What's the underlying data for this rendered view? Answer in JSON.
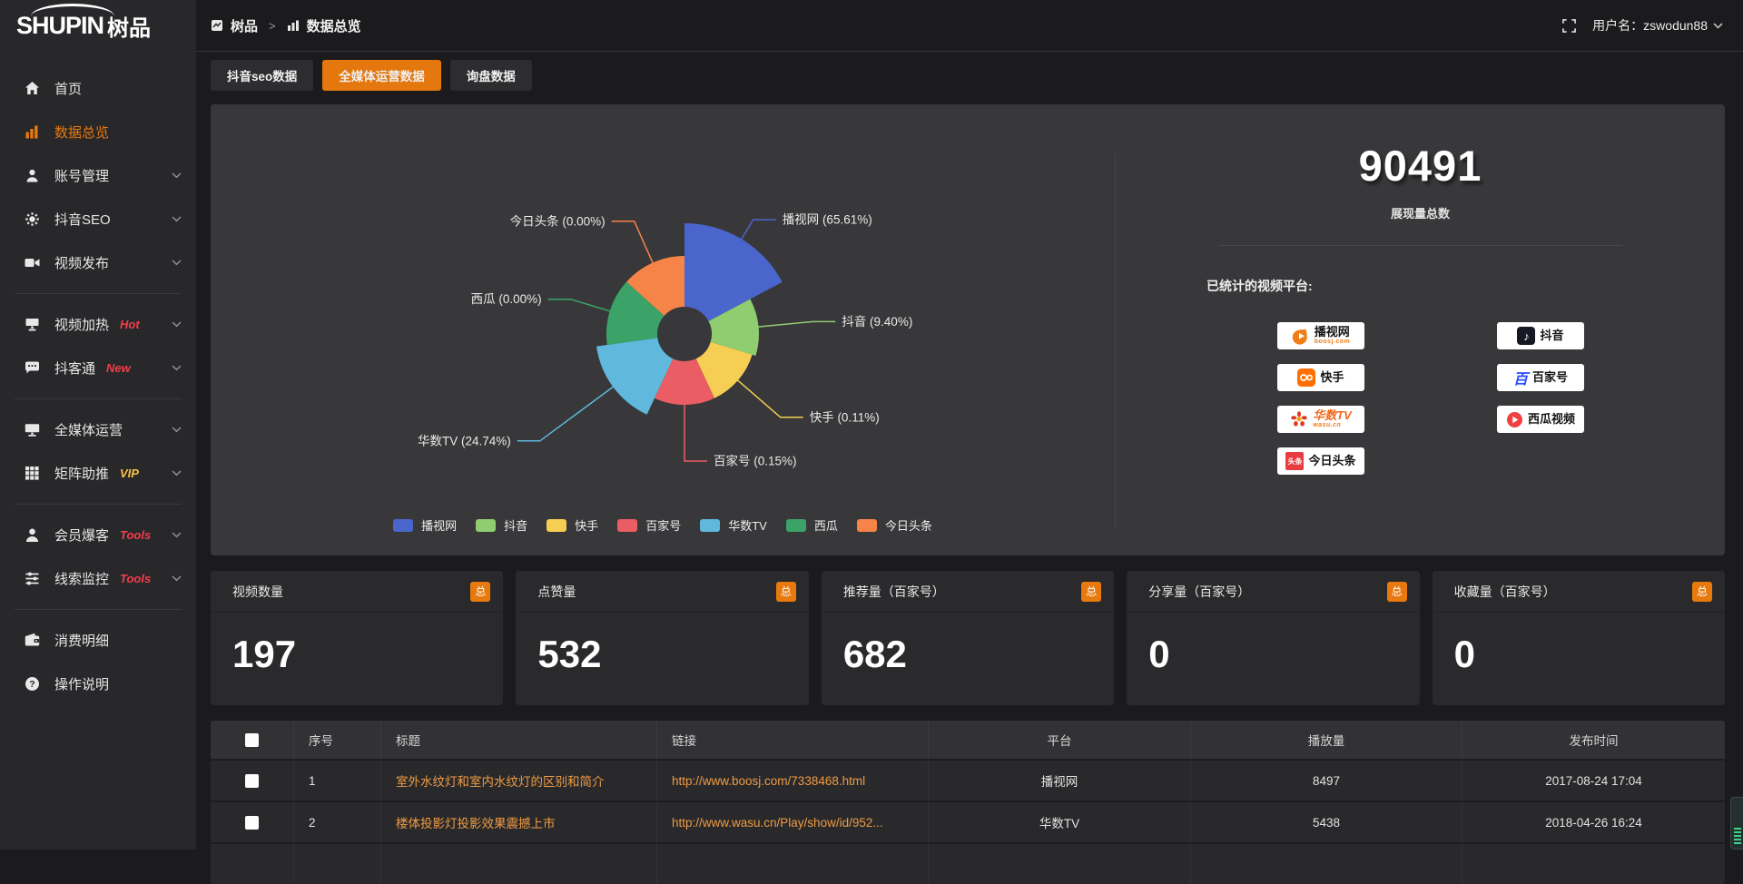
{
  "app": {
    "logo_en": "SHUPIN",
    "logo_cn": "树品"
  },
  "header": {
    "breadcrumb_root": "树品",
    "breadcrumb_sep": ">",
    "breadcrumb_current": "数据总览",
    "username": "用户名：zswodun88"
  },
  "sidebar": {
    "items": [
      {
        "key": "home",
        "label": "首页",
        "icon": "home"
      },
      {
        "key": "data-overview",
        "label": "数据总览",
        "icon": "bar-chart",
        "active": true
      },
      {
        "key": "account",
        "label": "账号管理",
        "icon": "user",
        "chevron": true
      },
      {
        "key": "douyin-seo",
        "label": "抖音SEO",
        "icon": "gear",
        "chevron": true
      },
      {
        "key": "video-publish",
        "label": "视频发布",
        "icon": "video",
        "chevron": true
      },
      {
        "divider": true
      },
      {
        "key": "video-heat",
        "label": "视频加热",
        "icon": "screen",
        "chevron": true,
        "badge": "Hot",
        "badge_color": "#f23d4c"
      },
      {
        "key": "douketong",
        "label": "抖客通",
        "icon": "chat",
        "chevron": true,
        "badge": "New",
        "badge_color": "#f23d4c"
      },
      {
        "divider": true
      },
      {
        "key": "omnimedia",
        "label": "全媒体运营",
        "icon": "monitor",
        "chevron": true
      },
      {
        "key": "matrix-boost",
        "label": "矩阵助推",
        "icon": "grid",
        "chevron": true,
        "badge": "VIP",
        "badge_color": "#f5c342"
      },
      {
        "divider": true
      },
      {
        "key": "member-burst",
        "label": "会员爆客",
        "icon": "person",
        "chevron": true,
        "badge": "Tools",
        "badge_color": "#f23d4c"
      },
      {
        "key": "clue-monitor",
        "label": "线索监控",
        "icon": "sliders",
        "chevron": true,
        "badge": "Tools",
        "badge_color": "#f23d4c"
      },
      {
        "divider": true
      },
      {
        "key": "expense-detail",
        "label": "消费明细",
        "icon": "wallet"
      },
      {
        "key": "help",
        "label": "操作说明",
        "icon": "question"
      }
    ]
  },
  "tabs": [
    {
      "key": "douyin-seo-data",
      "label": "抖音seo数据"
    },
    {
      "key": "omnimedia-data",
      "label": "全媒体运营数据",
      "active": true
    },
    {
      "key": "inquiry-data",
      "label": "询盘数据"
    }
  ],
  "chart_data": {
    "type": "pie",
    "variant": "nightingale-rose",
    "title": "",
    "unit": "%",
    "inner_radius": 30,
    "label_format": "{name} ({value}%)",
    "legend_position": "bottom",
    "series": [
      {
        "name": "播视网",
        "value": 65.61,
        "color": "#4a66cc",
        "start": 0,
        "end": 62,
        "radius": 122,
        "leader": 25
      },
      {
        "name": "抖音",
        "value": 9.4,
        "color": "#90cc70",
        "start": 62,
        "end": 107,
        "radius": 82,
        "leader": 60
      },
      {
        "name": "快手",
        "value": 0.11,
        "color": "#f5ce53",
        "start": 107,
        "end": 155,
        "radius": 78,
        "leader": 62
      },
      {
        "name": "百家号",
        "value": 0.15,
        "color": "#ea5d64",
        "start": 155,
        "end": 205,
        "radius": 78,
        "leader": 62
      },
      {
        "name": "华数TV",
        "value": 24.74,
        "color": "#60b8dc",
        "start": 205,
        "end": 262,
        "radius": 98,
        "leader": 100
      },
      {
        "name": "西瓜",
        "value": 0.0,
        "color": "#3ba368",
        "start": 262,
        "end": 312,
        "radius": 86,
        "leader": 45
      },
      {
        "name": "今日头条",
        "value": 0.0,
        "color": "#f68448",
        "start": 312,
        "end": 360,
        "radius": 86,
        "leader": 50
      }
    ],
    "legend": [
      "播视网",
      "抖音",
      "快手",
      "百家号",
      "华数TV",
      "西瓜",
      "今日头条"
    ]
  },
  "summary": {
    "total_value": "90491",
    "total_label": "展现量总数",
    "platforms_label": "已统计的视频平台:",
    "platforms_left": [
      {
        "name": "播视网",
        "sub": "boosj.com",
        "logo": "boosj"
      },
      {
        "name": "快手",
        "logo": "kuaishou"
      },
      {
        "name": "华数TV",
        "sub": "wasu.cn",
        "logo": "wasu"
      },
      {
        "name": "今日头条",
        "logo": "toutiao"
      }
    ],
    "platforms_right": [
      {
        "name": "抖音",
        "logo": "douyin"
      },
      {
        "name": "百家号",
        "logo": "baijiahao"
      },
      {
        "name": "西瓜视频",
        "logo": "xigua"
      }
    ]
  },
  "stat_cards": [
    {
      "title": "视频数量",
      "badge": "总",
      "value": "197"
    },
    {
      "title": "点赞量",
      "badge": "总",
      "value": "532"
    },
    {
      "title": "推荐量（百家号）",
      "badge": "总",
      "value": "682"
    },
    {
      "title": "分享量（百家号）",
      "badge": "总",
      "value": "0"
    },
    {
      "title": "收藏量（百家号）",
      "badge": "总",
      "value": "0"
    }
  ],
  "table": {
    "columns": [
      "序号",
      "标题",
      "链接",
      "平台",
      "播放量",
      "发布时间"
    ],
    "rows": [
      {
        "index": "1",
        "title": "室外水纹灯和室内水纹灯的区别和简介",
        "link": "http://www.boosj.com/7338468.html",
        "platform": "播视网",
        "views": "8497",
        "time": "2017-08-24 17:04"
      },
      {
        "index": "2",
        "title": "楼体投影灯投影效果震撼上市",
        "link": "http://www.wasu.cn/Play/show/id/952...",
        "platform": "华数TV",
        "views": "5438",
        "time": "2018-04-26 16:24"
      },
      {
        "index": "",
        "title": "",
        "link": "",
        "platform": "",
        "views": "",
        "time": "",
        "partial": true
      }
    ]
  },
  "colors": {
    "accent_orange": "#e8790e",
    "page_bg": "#1b1b1d",
    "sidebar_bg": "#28282a",
    "panel_bg": "#38383a",
    "card_bg": "#2a2a2c",
    "table_header_bg": "#323235",
    "hot_red": "#f23d4c",
    "vip_yellow": "#f5c342",
    "link_orange": "#ef9b45"
  }
}
